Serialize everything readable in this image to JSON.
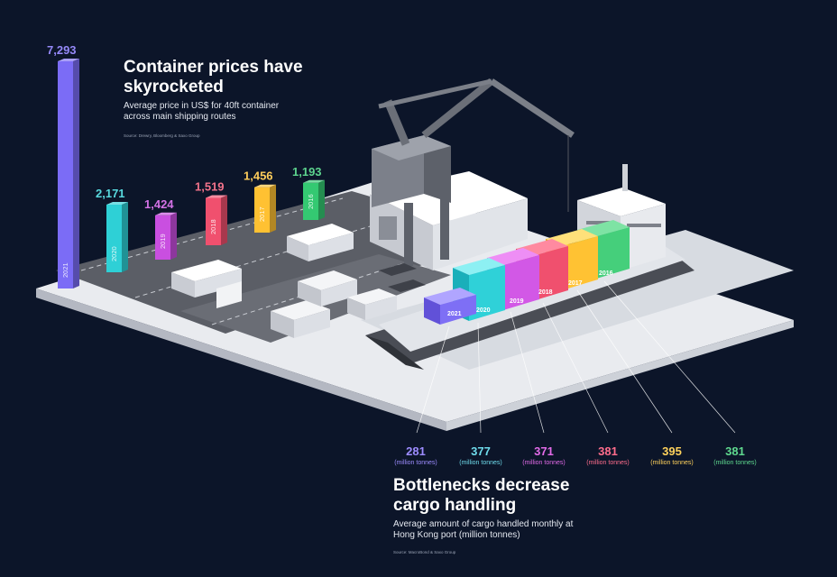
{
  "chart_data": [
    {
      "type": "bar",
      "title": "Container prices have skyrocketed",
      "subtitle": "Average price in US$ for 40ft container across main shipping routes",
      "source": "Source: Drewry, Bloomberg & Saxo Group",
      "categories": [
        "2021",
        "2020",
        "2019",
        "2018",
        "2017",
        "2016"
      ],
      "values": [
        7293,
        2171,
        1424,
        1519,
        1456,
        1193
      ],
      "value_labels": [
        "7,293",
        "2,171",
        "1,424",
        "1,519",
        "1,456",
        "1,193"
      ],
      "colors": [
        "#7b6cf6",
        "#2ed0d6",
        "#c94fe0",
        "#f0506e",
        "#ffc132",
        "#34c972"
      ]
    },
    {
      "type": "bar",
      "title": "Bottlenecks decrease cargo handling",
      "subtitle": "Average amount of cargo handled monthly at Hong Kong port (million tonnes)",
      "source": "Source: MacroBond & Saxo Group",
      "categories": [
        "2021",
        "2020",
        "2019",
        "2018",
        "2017",
        "2016"
      ],
      "values": [
        281,
        377,
        371,
        381,
        395,
        381
      ],
      "unit": "(million tonnes)",
      "colors": [
        "#9d8cff",
        "#6fdcec",
        "#e26be8",
        "#ff6d8c",
        "#ffd25c",
        "#5fd98f"
      ]
    }
  ]
}
